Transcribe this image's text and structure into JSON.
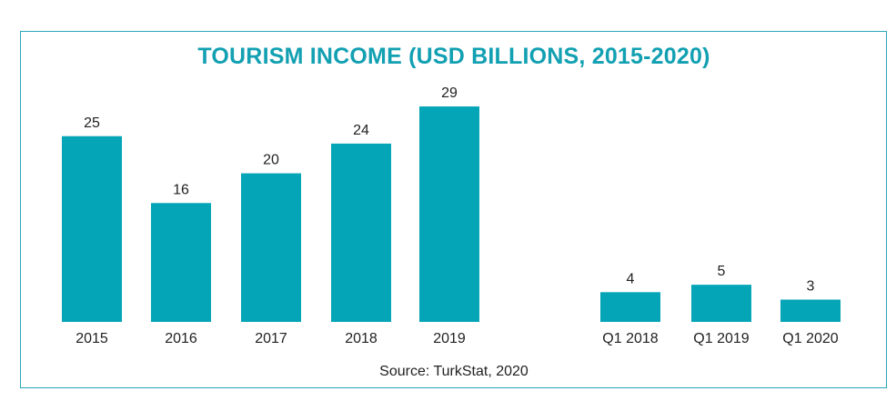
{
  "title": "TOURISM INCOME (USD BILLIONS, 2015-2020)",
  "source": "Source: TurkStat, 2020",
  "colors": {
    "bar": "#04a5b7",
    "title": "#12a0b2",
    "border": "#2aa6b8",
    "text": "#222222"
  },
  "chart_data": [
    {
      "type": "bar",
      "categories": [
        "2015",
        "2016",
        "2017",
        "2018",
        "2019"
      ],
      "values": [
        25,
        16,
        20,
        24,
        29
      ],
      "ylim": [
        0,
        29
      ]
    },
    {
      "type": "bar",
      "categories": [
        "Q1 2018",
        "Q1 2019",
        "Q1 2020"
      ],
      "values": [
        4,
        5,
        3
      ],
      "ylim": [
        0,
        29
      ]
    }
  ]
}
